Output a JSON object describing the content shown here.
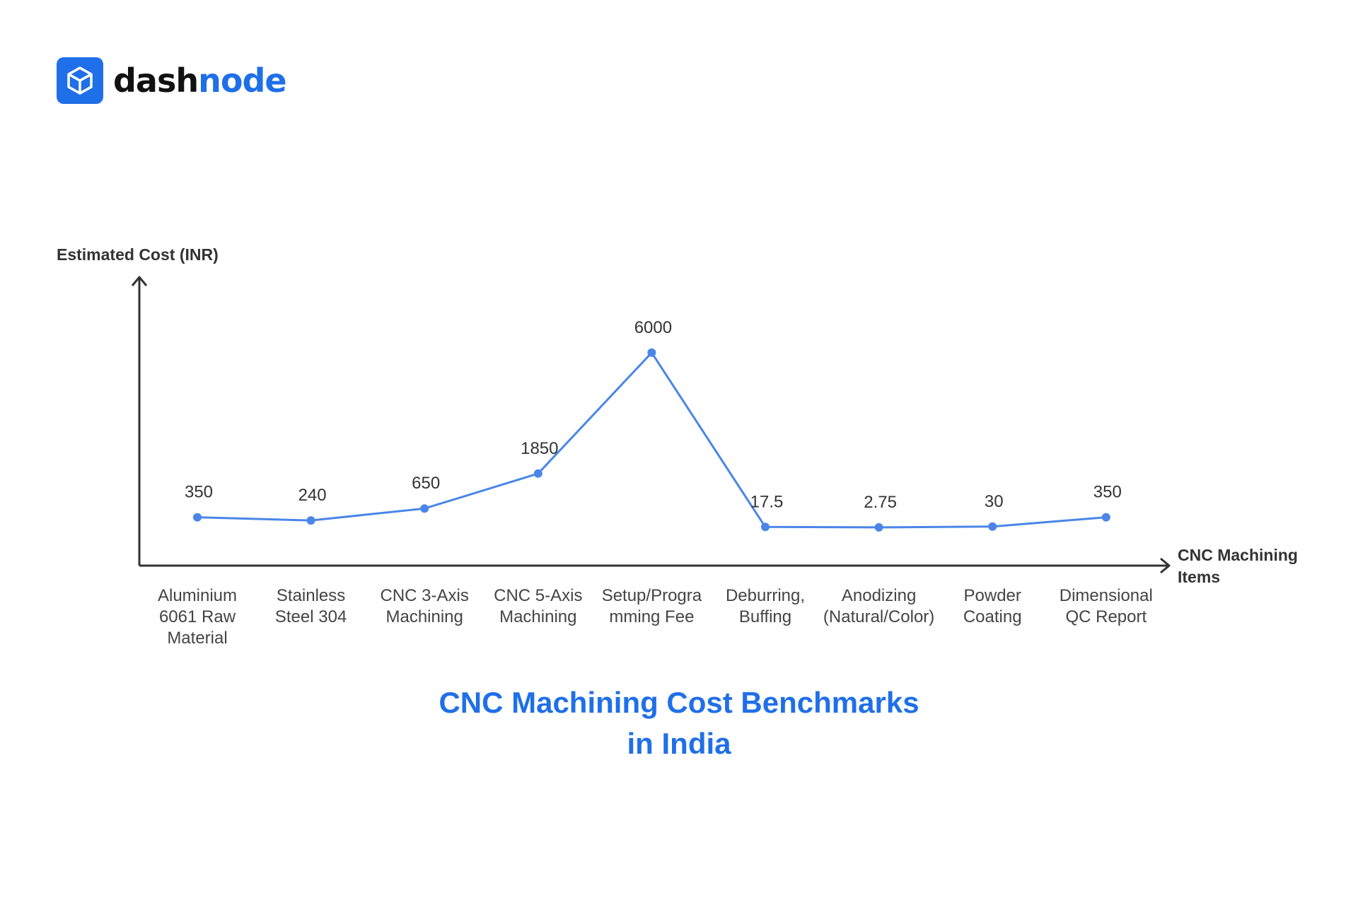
{
  "brand": {
    "name_part1": "dash",
    "name_part2": "node",
    "icon": "cube-icon",
    "color": "#1f6fe8"
  },
  "chart_data": {
    "type": "line",
    "title_line1": "CNC Machining Cost Benchmarks",
    "title_line2": "in India",
    "ylabel": "Estimated Cost (INR)",
    "xlabel_line1": "CNC Machining",
    "xlabel_line2": "Items",
    "categories": [
      [
        "Aluminium",
        "6061 Raw",
        "Material"
      ],
      [
        "Stainless",
        "Steel 304"
      ],
      [
        "CNC 3-Axis",
        "Machining"
      ],
      [
        "CNC 5-Axis",
        "Machining"
      ],
      [
        "Setup/Progra",
        "mming Fee"
      ],
      [
        "Deburring,",
        "Buffing"
      ],
      [
        "Anodizing",
        "(Natural/Color)"
      ],
      [
        "Powder",
        "Coating"
      ],
      [
        "Dimensional",
        "QC Report"
      ]
    ],
    "values": [
      350,
      240,
      650,
      1850,
      6000,
      17.5,
      2.75,
      30,
      350
    ],
    "value_labels": [
      "350",
      "240",
      "650",
      "1850",
      "6000",
      "17.5",
      "2.75",
      "30",
      "350"
    ],
    "ylim": [
      0,
      7000
    ],
    "grid": false,
    "line_color": "#4a86e8",
    "axis_color": "#333333"
  }
}
